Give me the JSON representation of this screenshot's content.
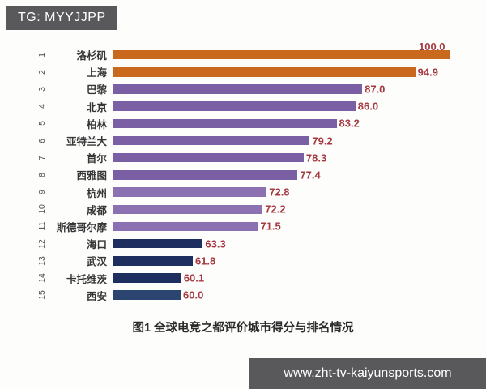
{
  "badge": {
    "text": "TG: MYYJJPP"
  },
  "chart_data": {
    "type": "bar",
    "orientation": "horizontal",
    "title": "图1 全球电竞之都评价城市得分与排名情况",
    "value_axis": {
      "min": 50,
      "max": 100,
      "gridlines": false,
      "axis_labels_visible": false
    },
    "value_label_color": "#a63a42",
    "legend": "none",
    "rows": [
      {
        "rank": 1,
        "city": "洛杉矶",
        "value": 100.0,
        "color": "#c8691e"
      },
      {
        "rank": 2,
        "city": "上海",
        "value": 94.9,
        "color": "#c8691e"
      },
      {
        "rank": 3,
        "city": "巴黎",
        "value": 87.0,
        "color": "#7b5fa5"
      },
      {
        "rank": 4,
        "city": "北京",
        "value": 86.0,
        "color": "#7b5fa5"
      },
      {
        "rank": 5,
        "city": "柏林",
        "value": 83.2,
        "color": "#7b5fa5"
      },
      {
        "rank": 6,
        "city": "亚特兰大",
        "value": 79.2,
        "color": "#7b5fa5"
      },
      {
        "rank": 7,
        "city": "首尔",
        "value": 78.3,
        "color": "#7b5fa5"
      },
      {
        "rank": 8,
        "city": "西雅图",
        "value": 77.4,
        "color": "#7b5fa5"
      },
      {
        "rank": 9,
        "city": "杭州",
        "value": 72.8,
        "color": "#8b70b2"
      },
      {
        "rank": 10,
        "city": "成都",
        "value": 72.2,
        "color": "#8b70b2"
      },
      {
        "rank": 11,
        "city": "斯德哥尔摩",
        "value": 71.5,
        "color": "#8b70b2"
      },
      {
        "rank": 12,
        "city": "海口",
        "value": 63.3,
        "color": "#1e2f5f"
      },
      {
        "rank": 13,
        "city": "武汉",
        "value": 61.8,
        "color": "#1e2f5f"
      },
      {
        "rank": 14,
        "city": "卡托维茨",
        "value": 60.1,
        "color": "#1e2f5f"
      },
      {
        "rank": 15,
        "city": "西安",
        "value": 60.0,
        "color": "#2b4570"
      }
    ]
  },
  "footer": {
    "website": "www.zht-tv-kaiyunsports.com"
  }
}
